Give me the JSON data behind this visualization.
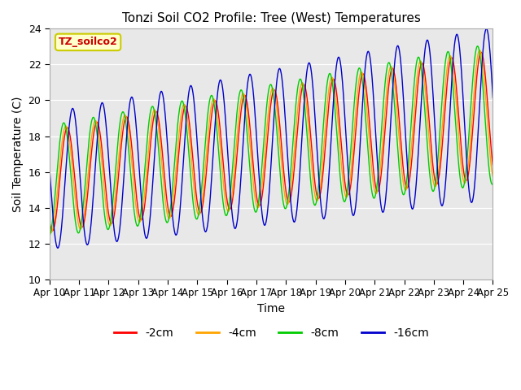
{
  "title": "Tonzi Soil CO2 Profile: Tree (West) Temperatures",
  "xlabel": "Time",
  "ylabel": "Soil Temperature (C)",
  "ylim": [
    10,
    24
  ],
  "yticks": [
    10,
    12,
    14,
    16,
    18,
    20,
    22,
    24
  ],
  "plot_bg_color": "#e8e8e8",
  "series_colors": [
    "#ff0000",
    "#ffa500",
    "#00cc00",
    "#0000cc"
  ],
  "series_labels": [
    "-2cm",
    "-4cm",
    "-8cm",
    "-16cm"
  ],
  "legend_box_color": "#ffffcc",
  "legend_box_edge": "#cccc00",
  "legend_text": "TZ_soilco2",
  "legend_text_color": "#cc0000",
  "x_tick_labels": [
    "Apr 10",
    "Apr 11",
    "Apr 12",
    "Apr 13",
    "Apr 14",
    "Apr 15",
    "Apr 16",
    "Apr 17",
    "Apr 18",
    "Apr 19",
    "Apr 20",
    "Apr 21",
    "Apr 22",
    "Apr 23",
    "Apr 24",
    "Apr 25"
  ],
  "n_points": 1440,
  "start_day": 0,
  "end_day": 15,
  "base_temp": 15.5,
  "warming_rate": 0.25,
  "amplitude_2cm": 2.8,
  "amplitude_4cm": 2.9,
  "amplitude_8cm": 3.1,
  "amplitude_16cm": 3.8,
  "phase_2cm": 0.0,
  "phase_4cm": 0.05,
  "phase_8cm": 0.12,
  "phase_16cm": -0.18
}
